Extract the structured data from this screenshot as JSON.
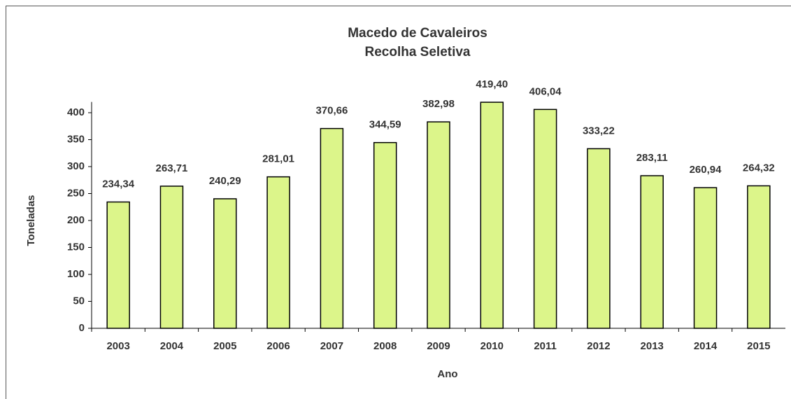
{
  "chart_data": {
    "type": "bar",
    "title": "Macedo de Cavaleiros",
    "subtitle": "Recolha Seletiva",
    "x_label": "Ano",
    "y_label": "Toneladas",
    "categories": [
      "2003",
      "2004",
      "2005",
      "2006",
      "2007",
      "2008",
      "2009",
      "2010",
      "2011",
      "2012",
      "2013",
      "2014",
      "2015"
    ],
    "values": [
      234.34,
      263.71,
      240.29,
      281.01,
      370.66,
      344.59,
      382.98,
      419.4,
      406.04,
      333.22,
      283.11,
      260.94,
      264.32
    ],
    "value_labels": [
      "234,34",
      "263,71",
      "240,29",
      "281,01",
      "370,66",
      "344,59",
      "382,98",
      "419,40",
      "406,04",
      "333,22",
      "283,11",
      "260,94",
      "264,32"
    ],
    "color": "#dcf58a",
    "ylim": [
      0,
      420
    ],
    "yticks": [
      0,
      50,
      100,
      150,
      200,
      250,
      300,
      350,
      400
    ],
    "grid": false
  }
}
